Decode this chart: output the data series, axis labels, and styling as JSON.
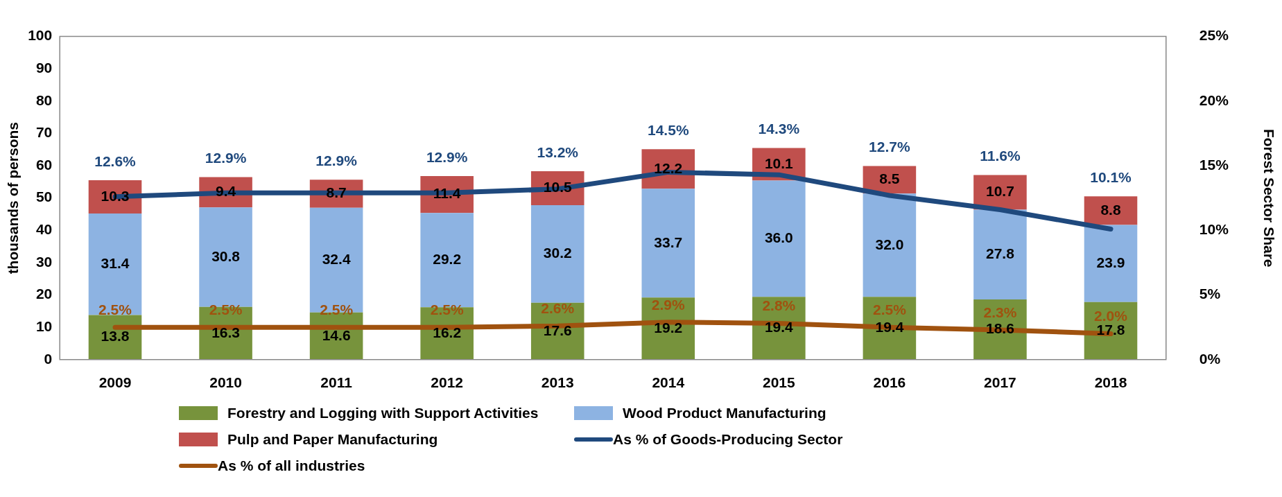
{
  "chart_data": {
    "type": "bar",
    "stacked": true,
    "ylabel": "thousands of persons",
    "y2label": "Forest Sector Share",
    "categories": [
      "2009",
      "2010",
      "2011",
      "2012",
      "2013",
      "2014",
      "2015",
      "2016",
      "2017",
      "2018"
    ],
    "ylim": [
      0,
      100
    ],
    "yticks": [
      0,
      10,
      20,
      30,
      40,
      50,
      60,
      70,
      80,
      90,
      100
    ],
    "y2lim": [
      0,
      25
    ],
    "y2ticks": [
      {
        "value": 0,
        "label": "0%"
      },
      {
        "value": 5,
        "label": "5%"
      },
      {
        "value": 10,
        "label": "10%"
      },
      {
        "value": 15,
        "label": "15%"
      },
      {
        "value": 20,
        "label": "20%"
      },
      {
        "value": 25,
        "label": "25%"
      }
    ],
    "grid": false,
    "legend": "bottom",
    "marker": "none",
    "series": [
      {
        "name": "Forestry and Logging with Support Activities",
        "color": "#77933c",
        "values": [
          13.8,
          16.3,
          14.6,
          16.2,
          17.6,
          19.2,
          19.4,
          19.4,
          18.6,
          17.8
        ],
        "value_labels": [
          "13.8",
          "16.3",
          "14.6",
          "16.2",
          "17.6",
          "19.2",
          "19.4",
          "19.4",
          "18.6",
          "17.8"
        ]
      },
      {
        "name": "Wood Product Manufacturing",
        "color": "#8db3e2",
        "values": [
          31.4,
          30.8,
          32.4,
          29.2,
          30.2,
          33.7,
          36.0,
          32.0,
          27.8,
          23.9
        ],
        "value_labels": [
          "31.4",
          "30.8",
          "32.4",
          "29.2",
          "30.2",
          "33.7",
          "36.0",
          "32.0",
          "27.8",
          "23.9"
        ]
      },
      {
        "name": "Pulp and Paper Manufacturing",
        "color": "#c0504d",
        "values": [
          10.3,
          9.4,
          8.7,
          11.4,
          10.5,
          12.2,
          10.1,
          8.5,
          10.7,
          8.8
        ],
        "value_labels": [
          "10.3",
          "9.4",
          "8.7",
          "11.4",
          "10.5",
          "12.2",
          "10.1",
          "8.5",
          "10.7",
          "8.8"
        ]
      },
      {
        "name": "As % of Goods-Producing Sector",
        "type": "line",
        "axis": "y2",
        "color": "#1f497d",
        "values": [
          12.6,
          12.9,
          12.9,
          12.9,
          13.2,
          14.5,
          14.3,
          12.7,
          11.6,
          10.1
        ],
        "value_labels": [
          "12.6%",
          "12.9%",
          "12.9%",
          "12.9%",
          "13.2%",
          "14.5%",
          "14.3%",
          "12.7%",
          "11.6%",
          "10.1%"
        ]
      },
      {
        "name": "As % of all industries",
        "type": "line",
        "axis": "y2",
        "color": "#a0520f",
        "values": [
          2.5,
          2.5,
          2.5,
          2.5,
          2.6,
          2.9,
          2.8,
          2.5,
          2.3,
          2.0
        ],
        "value_labels": [
          "2.5%",
          "2.5%",
          "2.5%",
          "2.5%",
          "2.6%",
          "2.9%",
          "2.8%",
          "2.5%",
          "2.3%",
          "2.0%"
        ]
      }
    ]
  }
}
